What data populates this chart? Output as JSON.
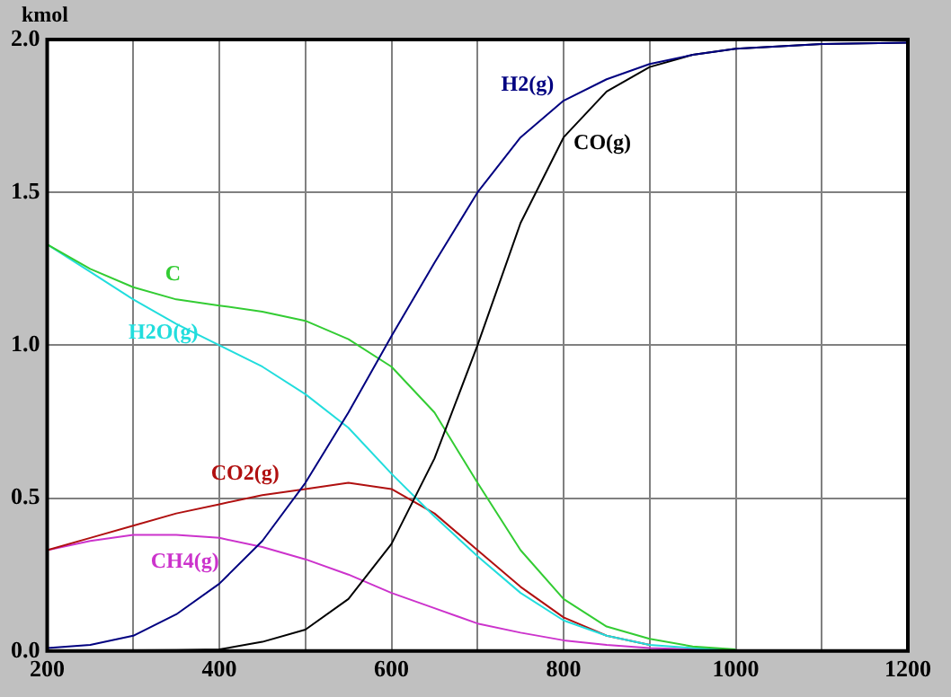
{
  "chart_data": {
    "type": "line",
    "ylabel": "kmol",
    "xlim": [
      200,
      1200
    ],
    "ylim": [
      0,
      2
    ],
    "xticks": [
      200,
      {
        "value": 300,
        "label": null
      },
      400,
      {
        "value": 500,
        "label": null
      },
      600,
      {
        "value": 700,
        "label": null
      },
      800,
      {
        "value": 900,
        "label": null
      },
      1000,
      {
        "value": 1100,
        "label": null
      },
      1200
    ],
    "yticks": [
      {
        "value": 0,
        "label": "0.0"
      },
      0.5,
      {
        "value": 1,
        "label": "1.0"
      },
      1.5,
      {
        "value": 2,
        "label": "2.0"
      }
    ],
    "grid": true,
    "legend": false,
    "marker": "none",
    "line_style": "solid",
    "x": [
      200,
      250,
      300,
      350,
      400,
      450,
      500,
      550,
      600,
      650,
      700,
      750,
      800,
      850,
      900,
      950,
      1000,
      1100,
      1200
    ],
    "series": [
      {
        "name": "H2(g)",
        "color": "#000080",
        "values": [
          0.01,
          0.02,
          0.05,
          0.12,
          0.22,
          0.36,
          0.55,
          0.78,
          1.03,
          1.27,
          1.5,
          1.68,
          1.8,
          1.87,
          1.92,
          1.95,
          1.97,
          1.985,
          1.99
        ]
      },
      {
        "name": "CO(g)",
        "color": "#000000",
        "values": [
          0,
          0,
          0.002,
          0.003,
          0.005,
          0.03,
          0.07,
          0.17,
          0.35,
          0.63,
          1.0,
          1.4,
          1.68,
          1.83,
          1.91,
          1.95,
          1.97,
          1.985,
          1.99
        ]
      },
      {
        "name": "C",
        "color": "#33cc33",
        "values": [
          1.33,
          1.25,
          1.19,
          1.15,
          1.13,
          1.11,
          1.08,
          1.02,
          0.93,
          0.78,
          0.55,
          0.33,
          0.17,
          0.08,
          0.04,
          0.015,
          0.005,
          null,
          null
        ]
      },
      {
        "name": "H2O(g)",
        "color": "#22dddd",
        "values": [
          1.33,
          1.24,
          1.15,
          1.07,
          1.0,
          0.93,
          0.84,
          0.73,
          0.58,
          0.44,
          0.31,
          0.19,
          0.1,
          0.05,
          0.02,
          0.01,
          0.003,
          null,
          null
        ]
      },
      {
        "name": "CO2(g)",
        "color": "#b01010",
        "values": [
          0.33,
          0.37,
          0.41,
          0.45,
          0.48,
          0.51,
          0.53,
          0.55,
          0.53,
          0.45,
          0.33,
          0.21,
          0.11,
          0.05,
          0.02,
          null,
          null,
          null,
          null
        ]
      },
      {
        "name": "CH4(g)",
        "color": "#cc33cc",
        "values": [
          0.33,
          0.36,
          0.38,
          0.38,
          0.37,
          0.34,
          0.3,
          0.25,
          0.19,
          0.14,
          0.09,
          0.06,
          0.035,
          0.02,
          0.01,
          0.005,
          0.003,
          null,
          null
        ]
      }
    ]
  }
}
